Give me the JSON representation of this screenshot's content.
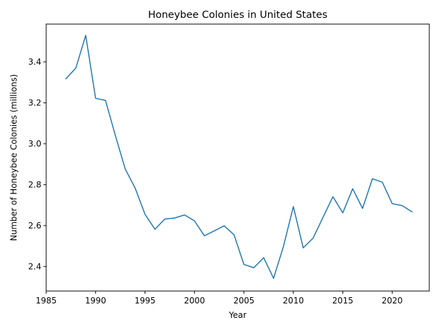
{
  "chart_data": {
    "type": "line",
    "title": "Honeybee Colonies in United States",
    "xlabel": "Year",
    "ylabel": "Number of Honeybee Colonies (millions)",
    "xlim": [
      1985,
      2023.75
    ],
    "ylim": [
      2.28,
      3.585
    ],
    "xticks": [
      1985,
      1990,
      1995,
      2000,
      2005,
      2010,
      2015,
      2020
    ],
    "yticks": [
      2.4,
      2.6,
      2.8,
      3.0,
      3.2,
      3.4
    ],
    "ytick_labels": [
      "2.4",
      "2.6",
      "2.8",
      "3.0",
      "3.2",
      "3.4"
    ],
    "grid": false,
    "line_color": "#1f77b4",
    "series": [
      {
        "x": [
          1987,
          1988,
          1989,
          1990,
          1991,
          1992,
          1993,
          1994,
          1995,
          1996,
          1997,
          1998,
          1999,
          2000,
          2001,
          2002,
          2003,
          2004,
          2005,
          2006,
          2007,
          2008,
          2009,
          2010,
          2011,
          2012,
          2013,
          2014,
          2015,
          2016,
          2017,
          2018,
          2019,
          2020,
          2021,
          2022
        ],
        "values": [
          3.318,
          3.37,
          3.53,
          3.222,
          3.212,
          3.04,
          2.876,
          2.783,
          2.655,
          2.582,
          2.632,
          2.637,
          2.652,
          2.623,
          2.55,
          2.574,
          2.599,
          2.555,
          2.41,
          2.394,
          2.443,
          2.342,
          2.498,
          2.693,
          2.491,
          2.539,
          2.64,
          2.741,
          2.662,
          2.78,
          2.684,
          2.829,
          2.812,
          2.707,
          2.698,
          2.667
        ]
      }
    ]
  }
}
